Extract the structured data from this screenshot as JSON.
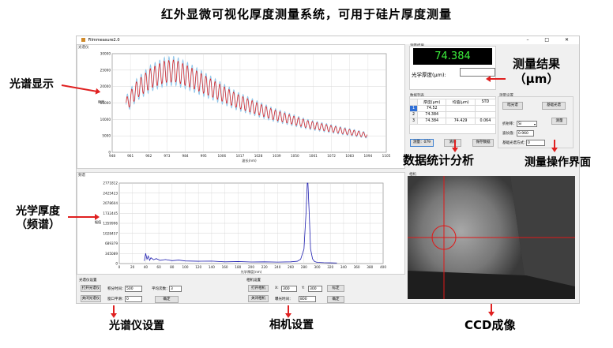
{
  "headline": "红外显微可视化厚度测量系统，可用于硅片厚度测量",
  "annotations": {
    "spectrum_display": "光谱显示",
    "optical_thickness": "光学厚度",
    "freq_spectrum": "（频谱）",
    "measurement_result": "测量结果",
    "result_unit": "（μm）",
    "data_stats": "数据统计分析",
    "measure_ui": "测量操作界面",
    "spectrometer_settings": "光谱仪设置",
    "camera_settings": "相机设置",
    "ccd_imaging": "CCD成像"
  },
  "window": {
    "title": "Filmmeasure2.0",
    "controls": "–  □  ✕"
  },
  "spectrum_panel": {
    "label": "光谱仪",
    "xlabel": "波长(nm)",
    "ylabel": "强度"
  },
  "fft_panel": {
    "label": "频谱",
    "xlabel": "光学厚度(nm)",
    "ylabel": "幅值"
  },
  "result_panel": {
    "label": "测量结果",
    "value": "74.384",
    "thickness_label": "光学厚度(μm):",
    "thickness_value": ""
  },
  "stats_panel": {
    "label": "数据列表",
    "headers": [
      "",
      "厚度(μm)",
      "均值(μm)",
      "STD"
    ],
    "rows": [
      [
        "1",
        "74.52",
        "",
        ""
      ],
      [
        "2",
        "74.384",
        "",
        ""
      ],
      [
        "3",
        "74.384",
        "74.429",
        "0.064"
      ]
    ],
    "btn_measure": "测量：079",
    "btn_clear": "清除",
    "btn_save": "保存数据"
  },
  "measure_panel": {
    "label": "测量设置",
    "btn_dark": "暗光谱",
    "btn_ref": "基础光谱",
    "refr_label": "折射率：",
    "refr_value": "Si",
    "wave_label": "波长值：",
    "wave_value": "0.960",
    "btn_measure": "测量",
    "base_label": "基础光谱方式：",
    "base_value": "0"
  },
  "spectrometer_settings": {
    "label": "光谱仪设置",
    "btn_open": "打开光谱仪",
    "btn_close": "关闭光谱仪",
    "integ_label": "积分时间：",
    "integ_value": "500",
    "avg_label": "平均次数：",
    "avg_value": "3",
    "window_label": "窗口平滑：",
    "window_value": "0",
    "btn_confirm": "确定"
  },
  "camera_settings": {
    "label": "相机设置",
    "btn_open": "打开相机",
    "btn_close": "关闭相机",
    "x_label": "X:",
    "x_value": "300",
    "y_label": "Y:",
    "y_value": "300",
    "btn_mark": "标定",
    "exposure_label": "曝光时间：",
    "exposure_value": "800",
    "btn_confirm": "确定"
  },
  "ccd_panel": {
    "label": "相机"
  },
  "colors": {
    "accent_red": "#e02020",
    "series_blue": "#8fc6ea",
    "series_red": "#e01818",
    "fft_line": "#1f1fb0",
    "lcd_text": "#3cf03c"
  },
  "chart_data": [
    {
      "type": "line",
      "title": "",
      "xlabel": "波长(nm)",
      "ylabel": "强度",
      "x_ticks": [
        "948",
        "961",
        "962",
        "973",
        "984",
        "995",
        "1006",
        "1017",
        "1028",
        "1039",
        "1050",
        "1061",
        "1072",
        "1083",
        "1094",
        "1105"
      ],
      "y_ticks": [
        "0",
        "5000",
        "10000",
        "15000",
        "20000",
        "25000",
        "30000"
      ],
      "xlim": [
        948,
        1105
      ],
      "ylim": [
        0,
        30000
      ],
      "series": [
        {
          "name": "",
          "color": "#8fc6ea",
          "role": "raw"
        },
        {
          "name": "",
          "color": "#e01818",
          "role": "measured"
        }
      ],
      "envelope": {
        "x": [
          956,
          962,
          970,
          978,
          984,
          992,
          1005,
          1020,
          1040,
          1060,
          1080,
          1094
        ],
        "y": [
          14500,
          19000,
          22500,
          24500,
          24800,
          23000,
          19500,
          15500,
          11500,
          8500,
          6500,
          5200
        ]
      },
      "fringe_count": 52
    },
    {
      "type": "line",
      "title": "",
      "xlabel": "光学厚度(nm)",
      "ylabel": "幅值",
      "x_ticks": [
        "0",
        "20",
        "40",
        "60",
        "80",
        "100",
        "120",
        "140",
        "160",
        "180",
        "200",
        "220",
        "240",
        "260",
        "280",
        "300",
        "320",
        "340",
        "360",
        "380",
        "400"
      ],
      "y_ticks": [
        "0",
        "345089",
        "689379",
        "1028457",
        "1359996",
        "1732445",
        "2078604",
        "2425423",
        "2771812"
      ],
      "xlim": [
        0,
        400
      ],
      "ylim": [
        0,
        2771812
      ],
      "series": [
        {
          "name": "",
          "color": "#1f1fb0",
          "x": [
            38,
            40,
            42,
            44,
            46,
            48,
            52,
            56,
            62,
            70,
            80,
            90,
            100,
            120,
            140,
            160,
            180,
            200,
            220,
            240,
            260,
            270,
            275,
            280,
            283,
            285,
            286,
            288,
            290,
            293,
            296,
            300,
            310,
            320,
            330
          ],
          "y": [
            90000,
            350000,
            150000,
            260000,
            110000,
            200000,
            130000,
            170000,
            110000,
            140000,
            100000,
            120000,
            90000,
            80000,
            85000,
            60000,
            70000,
            55000,
            60000,
            50000,
            60000,
            80000,
            150000,
            500000,
            1700000,
            2771812,
            2771812,
            1700000,
            500000,
            160000,
            70000,
            40000,
            30000,
            25000,
            20000
          ]
        }
      ]
    }
  ]
}
